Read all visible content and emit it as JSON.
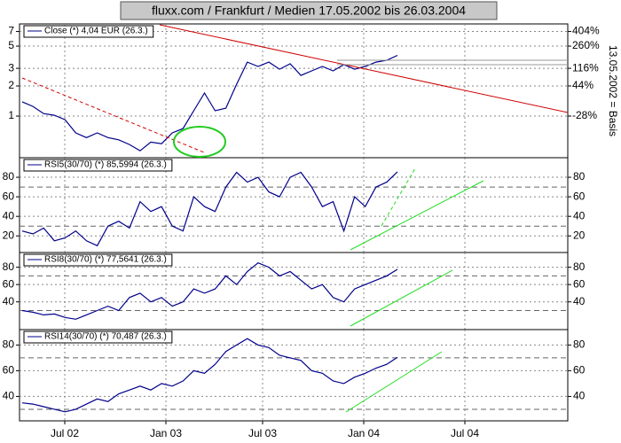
{
  "chart_data": [
    {
      "type": "line",
      "title": "fluxx.com / Frankfurt / Medien 17.05.2002 bis 26.03.2004",
      "log_scale": true,
      "grid": true,
      "ylim": [
        0.384,
        8.33
      ],
      "yticks": [
        7,
        5,
        3,
        2,
        1
      ],
      "y2lim": [
        -72.4,
        500
      ],
      "y2ticks": [
        {
          "value": 404,
          "label": "404%"
        },
        {
          "value": 260,
          "label": "260%"
        },
        {
          "value": 116,
          "label": "116%"
        },
        {
          "value": 44,
          "label": "44%"
        },
        {
          "value": -28,
          "label": "-28%"
        }
      ],
      "y2label": "13.05.2002 = Basis",
      "series": [
        {
          "name": "Close (*) 4,04 EUR (26.3.)",
          "color": "#00008b",
          "values": [
            1.39,
            1.25,
            1.06,
            1.02,
            0.92,
            0.68,
            0.61,
            0.68,
            0.61,
            0.58,
            0.52,
            0.45,
            0.55,
            0.53,
            0.68,
            0.75,
            1.13,
            1.7,
            1.13,
            1.2,
            2.08,
            3.46,
            3.13,
            3.46,
            2.94,
            3.33,
            2.55,
            2.83,
            3.13,
            2.83,
            3.26,
            2.94,
            3.13,
            3.46,
            3.61,
            4.04
          ]
        }
      ]
    },
    {
      "type": "line",
      "grid": true,
      "ylim": [
        3,
        100
      ],
      "yticks": [
        80,
        60,
        40,
        20
      ],
      "bands": [
        70,
        30
      ],
      "series": [
        {
          "name": "RSI5(30/70) (*) 85,5994 (26.3.)",
          "color": "#00008b",
          "values": [
            25,
            22,
            28,
            15,
            18,
            25,
            15,
            10,
            30,
            35,
            28,
            55,
            45,
            50,
            30,
            25,
            60,
            50,
            45,
            70,
            85,
            75,
            80,
            65,
            60,
            80,
            85,
            70,
            50,
            55,
            25,
            60,
            50,
            70,
            75,
            85.6
          ]
        }
      ]
    },
    {
      "type": "line",
      "grid": true,
      "ylim": [
        8,
        97
      ],
      "yticks": [
        80,
        60,
        40
      ],
      "bands": [
        70,
        30
      ],
      "series": [
        {
          "name": "RSI8(30/70) (*) 77,5641 (26.3.)",
          "color": "#00008b",
          "values": [
            30,
            28,
            25,
            26,
            22,
            20,
            25,
            30,
            35,
            30,
            45,
            50,
            40,
            45,
            35,
            40,
            55,
            50,
            55,
            70,
            60,
            75,
            85,
            80,
            70,
            75,
            65,
            55,
            60,
            45,
            40,
            55,
            60,
            65,
            70,
            77.6
          ]
        }
      ]
    },
    {
      "type": "line",
      "grid": true,
      "ylim": [
        21,
        92
      ],
      "yticks": [
        80,
        60,
        40
      ],
      "bands": [
        70,
        30
      ],
      "x_labels": [
        "Jul 02",
        "Jan 03",
        "Jul 03",
        "Jan 04",
        "Jul 04"
      ],
      "series": [
        {
          "name": "RSI14(30/70) (*) 70,487 (26.3.)",
          "color": "#00008b",
          "values": [
            35,
            34,
            32,
            30,
            28,
            30,
            34,
            38,
            36,
            42,
            45,
            48,
            45,
            50,
            48,
            52,
            60,
            58,
            65,
            75,
            80,
            85,
            80,
            78,
            72,
            70,
            68,
            60,
            58,
            52,
            50,
            55,
            58,
            62,
            65,
            70.5
          ]
        }
      ]
    }
  ]
}
